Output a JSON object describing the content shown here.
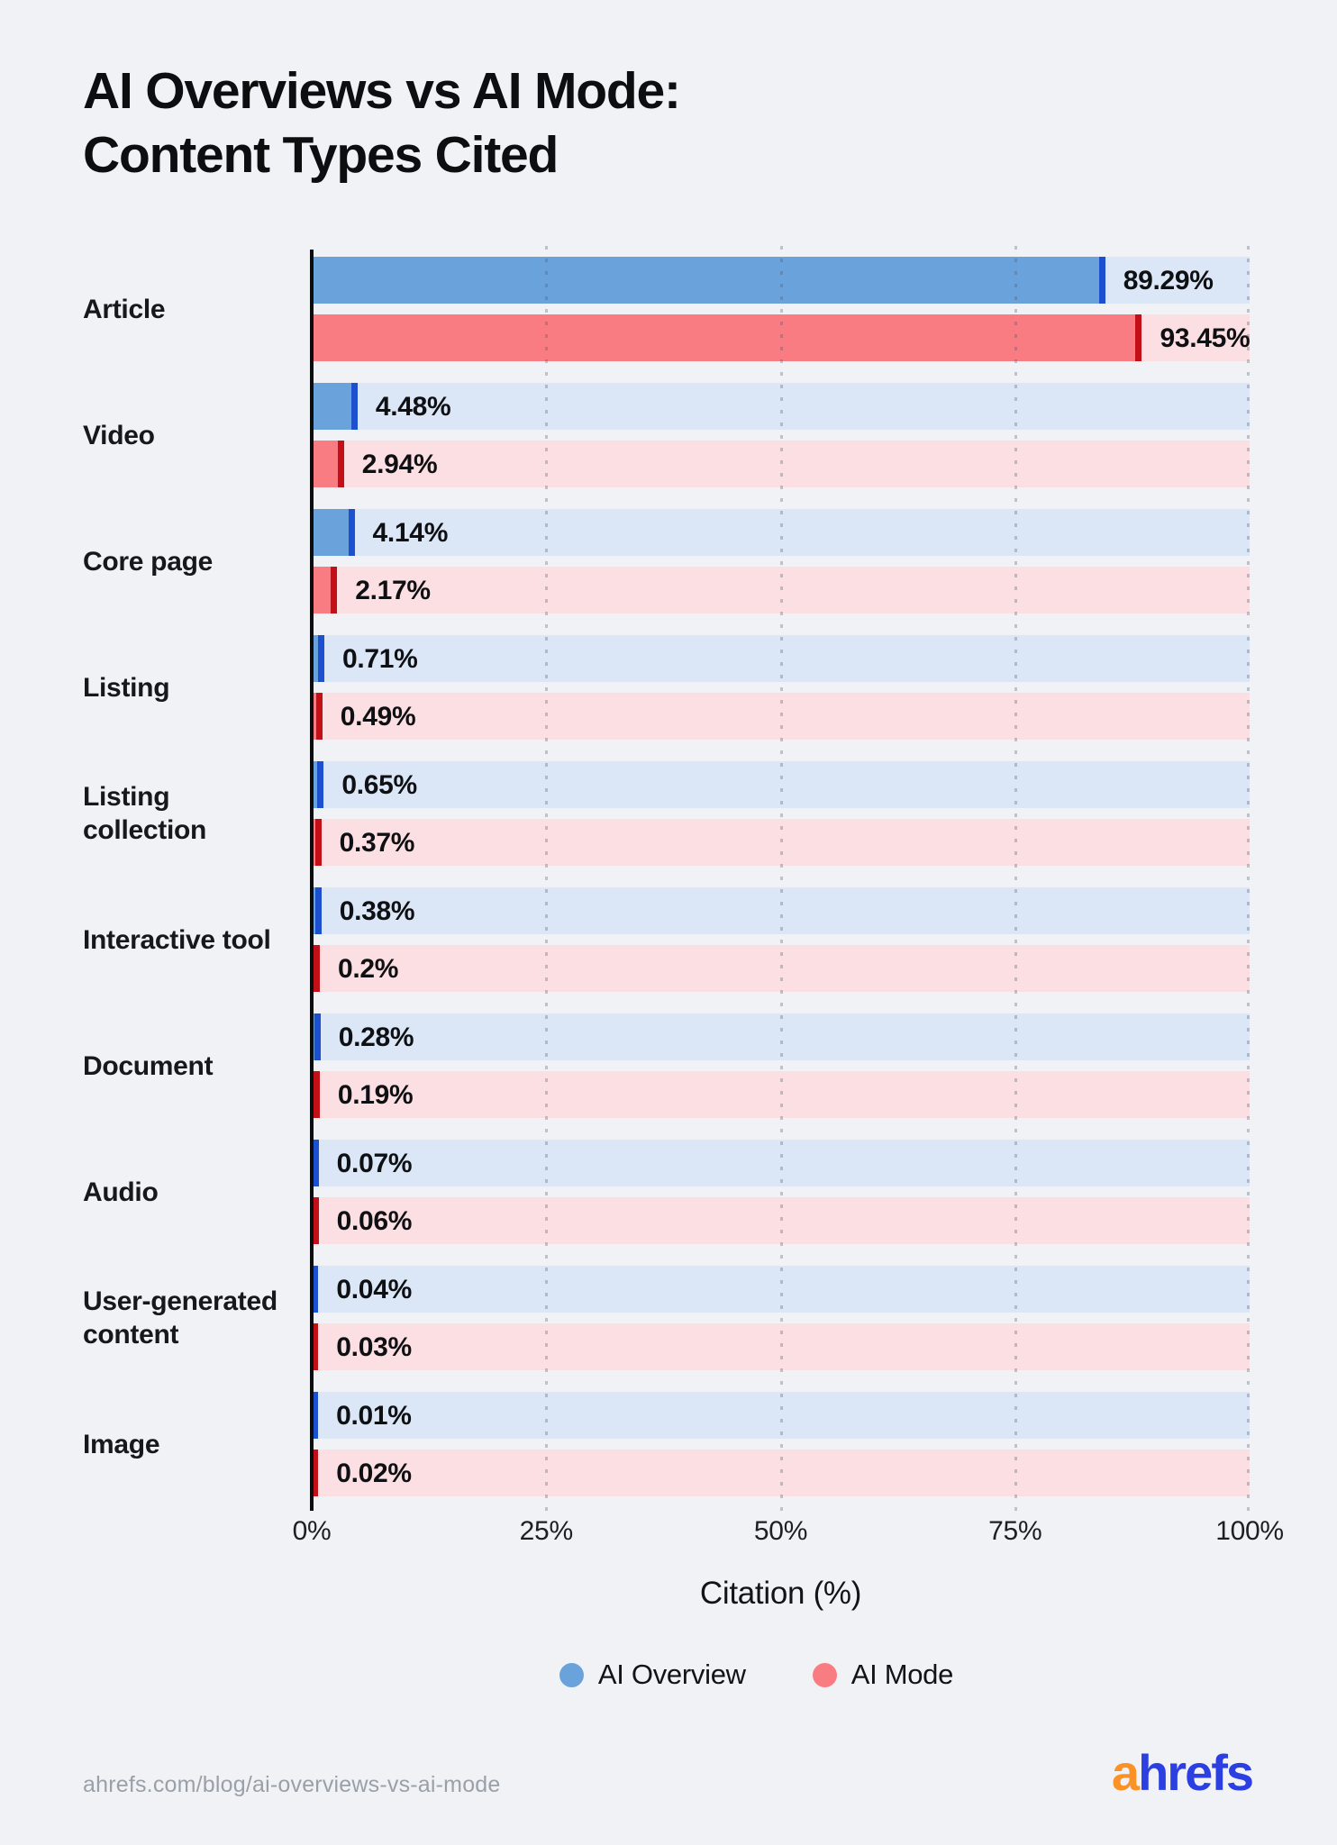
{
  "title": {
    "line1": "AI Overviews vs AI Mode:",
    "line2": "Content Types Cited"
  },
  "chart_data": {
    "type": "bar",
    "orientation": "horizontal",
    "title": "AI Overviews vs AI Mode: Content Types Cited",
    "xlabel": "Citation (%)",
    "xlim": [
      0,
      100
    ],
    "x_ticks": [
      "0%",
      "25%",
      "50%",
      "75%",
      "100%"
    ],
    "grid": "vertical-dotted",
    "legend_position": "bottom",
    "categories": [
      "Article",
      "Video",
      "Core page",
      "Listing",
      "Listing collection",
      "Interactive tool",
      "Document",
      "Audio",
      "User-generated content",
      "Image"
    ],
    "series": [
      {
        "name": "AI Overview",
        "values": [
          89.29,
          4.48,
          4.14,
          0.71,
          0.65,
          0.38,
          0.28,
          0.07,
          0.04,
          0.01
        ],
        "value_labels": [
          "89.29%",
          "4.48%",
          "4.14%",
          "0.71%",
          "0.65%",
          "0.38%",
          "0.28%",
          "0.07%",
          "0.04%",
          "0.01%"
        ],
        "bar_color": "#6aa3dc",
        "track_color": "#dbe7f7",
        "tip_color": "#1d50cf"
      },
      {
        "name": "AI Mode",
        "values": [
          93.45,
          2.94,
          2.17,
          0.49,
          0.37,
          0.2,
          0.19,
          0.06,
          0.03,
          0.02
        ],
        "value_labels": [
          "93.45%",
          "2.94%",
          "2.17%",
          "0.49%",
          "0.37%",
          "0.2%",
          "0.19%",
          "0.06%",
          "0.03%",
          "0.02%"
        ],
        "bar_color": "#f87c81",
        "track_color": "#fcdfe2",
        "tip_color": "#c30f16"
      }
    ]
  },
  "legend": {
    "items": [
      {
        "label": "AI Overview",
        "color": "#6aa3dc"
      },
      {
        "label": "AI Mode",
        "color": "#f87c81"
      }
    ]
  },
  "footer": {
    "source_url": "ahrefs.com/blog/ai-overviews-vs-ai-mode",
    "brand": {
      "part1": "a",
      "part2": "hrefs",
      "part1_color": "#fb9227",
      "part2_color": "#2c3fe0"
    }
  }
}
